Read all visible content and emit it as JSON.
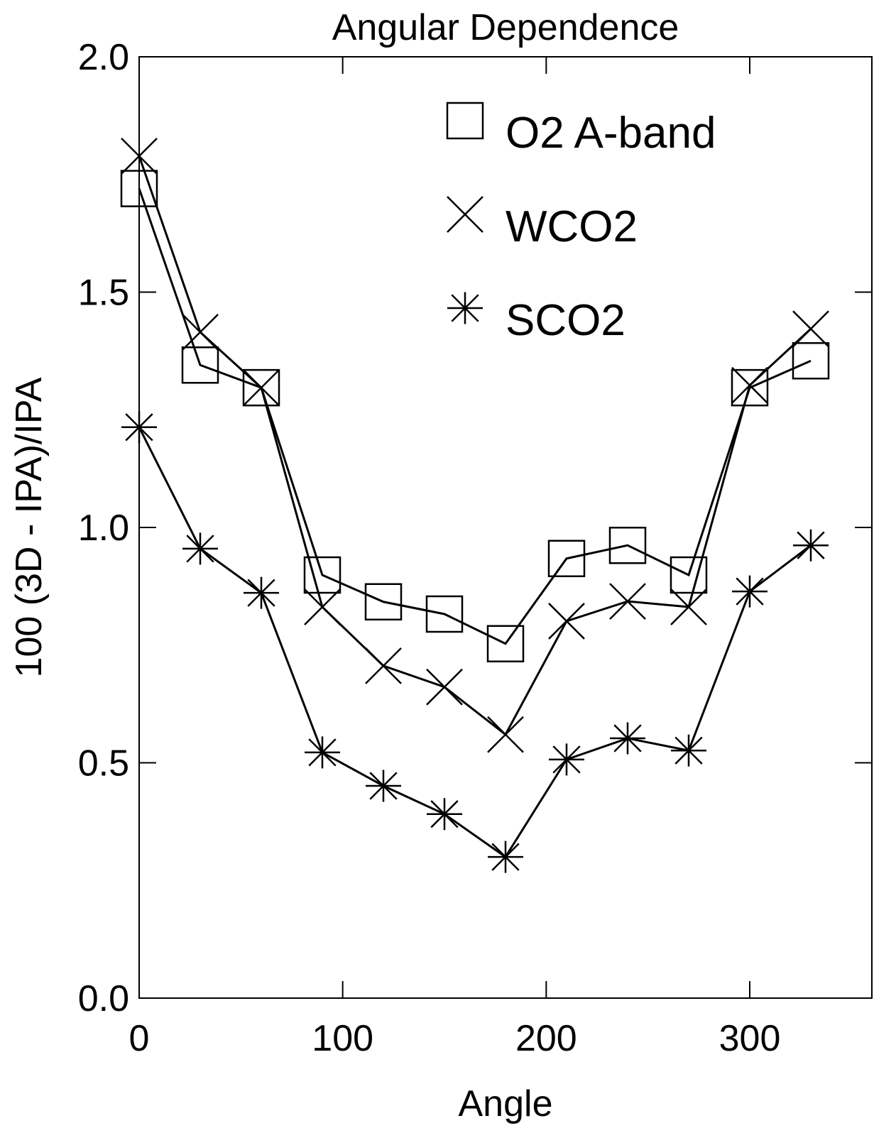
{
  "chart_data": {
    "type": "line",
    "title": "Angular Dependence",
    "x_label": "Angle",
    "y_label": "100 (3D - IPA)/IPA",
    "x": [
      0,
      30,
      60,
      90,
      120,
      150,
      180,
      210,
      240,
      270,
      300,
      330
    ],
    "series": [
      {
        "name": "O2 A-band",
        "marker": "square",
        "color": "#000000",
        "values": [
          1.72,
          1.345,
          1.297,
          0.899,
          0.842,
          0.816,
          0.753,
          0.934,
          0.962,
          0.899,
          1.297,
          1.354
        ]
      },
      {
        "name": "WCO2",
        "marker": "x",
        "color": "#000000",
        "values": [
          1.789,
          1.415,
          1.297,
          0.831,
          0.706,
          0.661,
          0.56,
          0.801,
          0.843,
          0.831,
          1.302,
          1.422
        ]
      },
      {
        "name": "SCO2",
        "marker": "asterisk",
        "color": "#000000",
        "values": [
          1.213,
          0.955,
          0.861,
          0.522,
          0.451,
          0.391,
          0.3,
          0.507,
          0.552,
          0.526,
          0.864,
          0.962
        ]
      }
    ],
    "xlim": [
      0,
      360
    ],
    "ylim": [
      0,
      2
    ],
    "xticks": [
      0,
      100,
      200,
      300
    ],
    "yticks": [
      {
        "value": 0,
        "label": "0.0"
      },
      {
        "value": 0.5,
        "label": "0.5"
      },
      {
        "value": 1,
        "label": "1.0"
      },
      {
        "value": 1.5,
        "label": "1.5"
      },
      {
        "value": 2,
        "label": "2.0"
      }
    ],
    "legend": "upper-right"
  }
}
